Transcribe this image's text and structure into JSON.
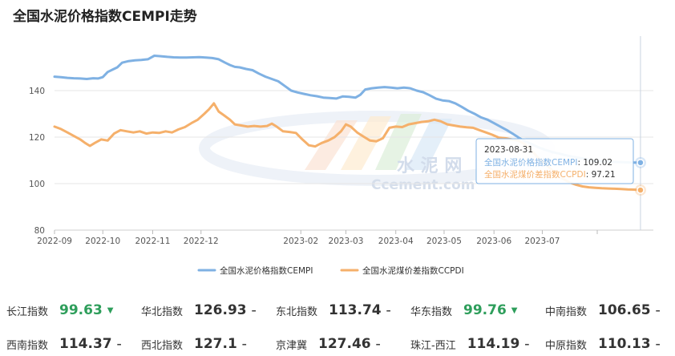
{
  "title": "全国水泥价格指数CEMPI走势",
  "watermark": {
    "line1": "水 泥 网",
    "line2": "Ccement.com"
  },
  "chart_data": {
    "type": "line",
    "ylim": [
      80,
      160
    ],
    "yticks": [
      80,
      100,
      120,
      140
    ],
    "xlim": [
      "2022-09-01",
      "2023-09-08"
    ],
    "xticks": [
      "2022-09",
      "2022-10",
      "2022-11",
      "2022-12",
      "2023-02",
      "2023-03",
      "2023-04",
      "2023-05",
      "2023-06",
      "2023-07"
    ],
    "grid": "horizontal",
    "legend_position": "bottom",
    "series": [
      {
        "name": "全国水泥价格指数CEMPI",
        "color": "#7fb1e3",
        "points": [
          [
            "2022-09-01",
            146.0
          ],
          [
            "2022-09-05",
            145.8
          ],
          [
            "2022-09-09",
            145.5
          ],
          [
            "2022-09-13",
            145.3
          ],
          [
            "2022-09-17",
            145.2
          ],
          [
            "2022-09-21",
            145.0
          ],
          [
            "2022-09-25",
            145.3
          ],
          [
            "2022-09-28",
            145.2
          ],
          [
            "2022-10-01",
            145.8
          ],
          [
            "2022-10-04",
            148.0
          ],
          [
            "2022-10-07",
            149.0
          ],
          [
            "2022-10-10",
            150.0
          ],
          [
            "2022-10-13",
            152.0
          ],
          [
            "2022-10-17",
            152.7
          ],
          [
            "2022-10-21",
            153.0
          ],
          [
            "2022-10-25",
            153.2
          ],
          [
            "2022-10-29",
            153.5
          ],
          [
            "2022-11-02",
            155.0
          ],
          [
            "2022-11-06",
            154.8
          ],
          [
            "2022-11-10",
            154.5
          ],
          [
            "2022-11-14",
            154.3
          ],
          [
            "2022-11-18",
            154.2
          ],
          [
            "2022-11-22",
            154.2
          ],
          [
            "2022-11-26",
            154.3
          ],
          [
            "2022-11-30",
            154.4
          ],
          [
            "2022-12-04",
            154.2
          ],
          [
            "2022-12-08",
            154.0
          ],
          [
            "2022-12-12",
            153.5
          ],
          [
            "2022-12-16",
            152.0
          ],
          [
            "2022-12-19",
            151.0
          ],
          [
            "2022-12-22",
            150.2
          ],
          [
            "2022-12-25",
            150.0
          ],
          [
            "2022-12-29",
            149.3
          ],
          [
            "2023-01-02",
            148.8
          ],
          [
            "2023-01-06",
            147.3
          ],
          [
            "2023-01-10",
            146.0
          ],
          [
            "2023-01-14",
            145.0
          ],
          [
            "2023-01-18",
            144.0
          ],
          [
            "2023-01-22",
            142.0
          ],
          [
            "2023-01-26",
            140.0
          ],
          [
            "2023-01-30",
            139.2
          ],
          [
            "2023-02-03",
            138.6
          ],
          [
            "2023-02-07",
            138.0
          ],
          [
            "2023-02-11",
            137.6
          ],
          [
            "2023-02-15",
            137.0
          ],
          [
            "2023-02-19",
            136.8
          ],
          [
            "2023-02-23",
            136.6
          ],
          [
            "2023-02-27",
            137.5
          ],
          [
            "2023-03-03",
            137.3
          ],
          [
            "2023-03-07",
            137.0
          ],
          [
            "2023-03-10",
            138.2
          ],
          [
            "2023-03-13",
            140.5
          ],
          [
            "2023-03-17",
            141.0
          ],
          [
            "2023-03-21",
            141.3
          ],
          [
            "2023-03-25",
            141.5
          ],
          [
            "2023-03-29",
            141.3
          ],
          [
            "2023-04-02",
            141.0
          ],
          [
            "2023-04-06",
            141.3
          ],
          [
            "2023-04-10",
            141.0
          ],
          [
            "2023-04-14",
            140.0
          ],
          [
            "2023-04-18",
            139.3
          ],
          [
            "2023-04-22",
            138.0
          ],
          [
            "2023-04-26",
            136.5
          ],
          [
            "2023-04-30",
            135.8
          ],
          [
            "2023-05-04",
            135.5
          ],
          [
            "2023-05-08",
            134.5
          ],
          [
            "2023-05-12",
            133.0
          ],
          [
            "2023-05-16",
            131.3
          ],
          [
            "2023-05-20",
            130.0
          ],
          [
            "2023-05-24",
            128.5
          ],
          [
            "2023-05-28",
            127.5
          ],
          [
            "2023-06-01",
            126.0
          ],
          [
            "2023-06-05",
            124.5
          ],
          [
            "2023-06-09",
            123.0
          ],
          [
            "2023-06-13",
            121.3
          ],
          [
            "2023-06-17",
            119.5
          ],
          [
            "2023-06-21",
            118.0
          ],
          [
            "2023-06-25",
            116.8
          ],
          [
            "2023-06-29",
            115.5
          ],
          [
            "2023-07-03",
            114.5
          ],
          [
            "2023-07-07",
            113.6
          ],
          [
            "2023-07-11",
            113.0
          ],
          [
            "2023-07-15",
            112.3
          ],
          [
            "2023-07-19",
            111.7
          ],
          [
            "2023-07-23",
            111.2
          ],
          [
            "2023-07-27",
            110.7
          ],
          [
            "2023-07-31",
            110.0
          ],
          [
            "2023-08-04",
            109.8
          ],
          [
            "2023-08-08",
            109.5
          ],
          [
            "2023-08-12",
            109.4
          ],
          [
            "2023-08-16",
            109.3
          ],
          [
            "2023-08-20",
            109.2
          ],
          [
            "2023-08-24",
            109.1
          ],
          [
            "2023-08-28",
            109.05
          ],
          [
            "2023-08-31",
            109.02
          ]
        ]
      },
      {
        "name": "全国水泥煤价差指数CCPDI",
        "color": "#f5b06b",
        "points": [
          [
            "2022-09-01",
            124.5
          ],
          [
            "2022-09-05",
            123.5
          ],
          [
            "2022-09-09",
            122.0
          ],
          [
            "2022-09-13",
            120.5
          ],
          [
            "2022-09-17",
            119.0
          ],
          [
            "2022-09-20",
            117.5
          ],
          [
            "2022-09-23",
            116.2
          ],
          [
            "2022-09-26",
            117.5
          ],
          [
            "2022-09-30",
            119.0
          ],
          [
            "2022-10-04",
            118.5
          ],
          [
            "2022-10-08",
            121.5
          ],
          [
            "2022-10-12",
            123.0
          ],
          [
            "2022-10-16",
            122.5
          ],
          [
            "2022-10-20",
            122.0
          ],
          [
            "2022-10-24",
            122.5
          ],
          [
            "2022-10-28",
            121.5
          ],
          [
            "2022-11-01",
            122.0
          ],
          [
            "2022-11-05",
            121.8
          ],
          [
            "2022-11-09",
            122.5
          ],
          [
            "2022-11-13",
            122.0
          ],
          [
            "2022-11-17",
            123.3
          ],
          [
            "2022-11-21",
            124.3
          ],
          [
            "2022-11-25",
            126.0
          ],
          [
            "2022-11-29",
            127.5
          ],
          [
            "2022-12-03",
            130.0
          ],
          [
            "2022-12-06",
            132.0
          ],
          [
            "2022-12-09",
            134.5
          ],
          [
            "2022-12-12",
            131.0
          ],
          [
            "2022-12-15",
            129.5
          ],
          [
            "2022-12-19",
            127.5
          ],
          [
            "2022-12-22",
            125.5
          ],
          [
            "2022-12-26",
            125.0
          ],
          [
            "2022-12-30",
            124.5
          ],
          [
            "2023-01-03",
            124.8
          ],
          [
            "2023-01-07",
            124.5
          ],
          [
            "2023-01-11",
            124.8
          ],
          [
            "2023-01-14",
            125.8
          ],
          [
            "2023-01-17",
            124.5
          ],
          [
            "2023-01-21",
            122.5
          ],
          [
            "2023-01-25",
            122.2
          ],
          [
            "2023-01-29",
            121.8
          ],
          [
            "2023-02-02",
            119.0
          ],
          [
            "2023-02-06",
            116.5
          ],
          [
            "2023-02-10",
            116.0
          ],
          [
            "2023-02-14",
            117.5
          ],
          [
            "2023-02-18",
            118.5
          ],
          [
            "2023-02-22",
            120.0
          ],
          [
            "2023-02-26",
            122.5
          ],
          [
            "2023-03-01",
            125.5
          ],
          [
            "2023-03-04",
            124.5
          ],
          [
            "2023-03-08",
            122.0
          ],
          [
            "2023-03-12",
            120.2
          ],
          [
            "2023-03-16",
            118.5
          ],
          [
            "2023-03-20",
            118.2
          ],
          [
            "2023-03-24",
            119.5
          ],
          [
            "2023-03-28",
            124.0
          ],
          [
            "2023-04-01",
            124.5
          ],
          [
            "2023-04-05",
            124.3
          ],
          [
            "2023-04-09",
            125.5
          ],
          [
            "2023-04-13",
            126.0
          ],
          [
            "2023-04-17",
            126.5
          ],
          [
            "2023-04-21",
            126.8
          ],
          [
            "2023-04-25",
            127.5
          ],
          [
            "2023-04-29",
            126.8
          ],
          [
            "2023-05-03",
            125.5
          ],
          [
            "2023-05-07",
            125.0
          ],
          [
            "2023-05-11",
            124.5
          ],
          [
            "2023-05-15",
            124.2
          ],
          [
            "2023-05-19",
            124.0
          ],
          [
            "2023-05-23",
            123.0
          ],
          [
            "2023-05-27",
            122.0
          ],
          [
            "2023-05-31",
            121.0
          ],
          [
            "2023-06-04",
            119.8
          ],
          [
            "2023-06-08",
            119.5
          ],
          [
            "2023-06-12",
            119.0
          ],
          [
            "2023-06-16",
            118.5
          ],
          [
            "2023-06-20",
            117.0
          ],
          [
            "2023-06-24",
            114.5
          ],
          [
            "2023-06-28",
            111.5
          ],
          [
            "2023-07-02",
            109.0
          ],
          [
            "2023-07-06",
            106.5
          ],
          [
            "2023-07-10",
            104.0
          ],
          [
            "2023-07-14",
            102.0
          ],
          [
            "2023-07-18",
            100.5
          ],
          [
            "2023-07-22",
            99.5
          ],
          [
            "2023-07-26",
            98.8
          ],
          [
            "2023-07-30",
            98.4
          ],
          [
            "2023-08-03",
            98.2
          ],
          [
            "2023-08-07",
            98.0
          ],
          [
            "2023-08-11",
            97.9
          ],
          [
            "2023-08-15",
            97.8
          ],
          [
            "2023-08-19",
            97.7
          ],
          [
            "2023-08-23",
            97.5
          ],
          [
            "2023-08-27",
            97.4
          ],
          [
            "2023-08-31",
            97.21
          ]
        ]
      }
    ],
    "tooltip": {
      "date": "2023-08-31",
      "items": [
        {
          "label": "全国水泥价格指数CEMPI",
          "value": "109.02"
        },
        {
          "label": "全国水泥煤价差指数CCPDI",
          "value": "97.21"
        }
      ]
    }
  },
  "indices": [
    [
      {
        "name": "长江指数",
        "value": "99.63",
        "trend": "down"
      },
      {
        "name": "华北指数",
        "value": "126.93",
        "trend": "flat"
      },
      {
        "name": "东北指数",
        "value": "113.74",
        "trend": "flat"
      },
      {
        "name": "华东指数",
        "value": "99.76",
        "trend": "down"
      },
      {
        "name": "中南指数",
        "value": "106.65",
        "trend": "flat"
      }
    ],
    [
      {
        "name": "西南指数",
        "value": "114.37",
        "trend": "flat"
      },
      {
        "name": "西北指数",
        "value": "127.1",
        "trend": "flat"
      },
      {
        "name": "京津冀",
        "value": "127.46",
        "trend": "flat"
      },
      {
        "name": "珠江-西江",
        "value": "114.19",
        "trend": "flat"
      },
      {
        "name": "中原指数",
        "value": "110.13",
        "trend": "flat"
      }
    ]
  ]
}
